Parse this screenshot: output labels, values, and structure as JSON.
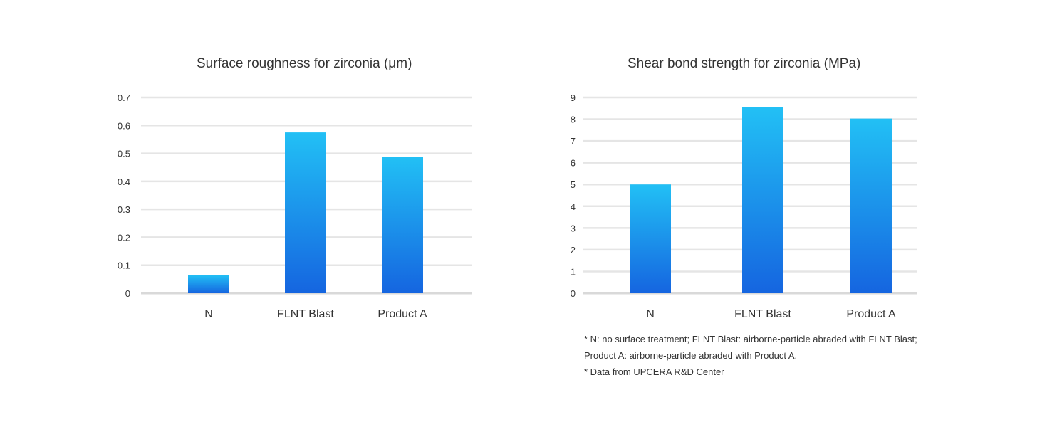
{
  "chart_data": [
    {
      "type": "bar",
      "title": "Surface roughness for zirconia (μm)",
      "categories": [
        "N",
        "FLNT Blast",
        "Product A"
      ],
      "values": [
        0.065,
        0.575,
        0.488
      ],
      "ylim": [
        0,
        0.7
      ],
      "yticks": [
        "0",
        "0.1",
        "0.2",
        "0.3",
        "0.4",
        "0.5",
        "0.6",
        "0.7"
      ],
      "grid": true,
      "colors": {
        "bar_top": "#22c0f5",
        "bar_bottom": "#1565e0",
        "grid": "#e5e5e5",
        "axis": "#d9d9d9"
      }
    },
    {
      "type": "bar",
      "title": "Shear bond strength for zirconia (MPa)",
      "categories": [
        "N",
        "FLNT Blast",
        "Product A"
      ],
      "values": [
        5.0,
        8.55,
        8.03
      ],
      "ylim": [
        0,
        9
      ],
      "yticks": [
        "0",
        "1",
        "2",
        "3",
        "4",
        "5",
        "6",
        "7",
        "8",
        "9"
      ],
      "grid": true,
      "colors": {
        "bar_top": "#22c0f5",
        "bar_bottom": "#1565e0",
        "grid": "#e5e5e5",
        "axis": "#d9d9d9"
      }
    }
  ],
  "footnotes": [
    "* N: no surface treatment; FLNT Blast: airborne-particle abraded with FLNT Blast;",
    "Product A: airborne-particle abraded with Product A.",
    "* Data from UPCERA R&D Center"
  ]
}
